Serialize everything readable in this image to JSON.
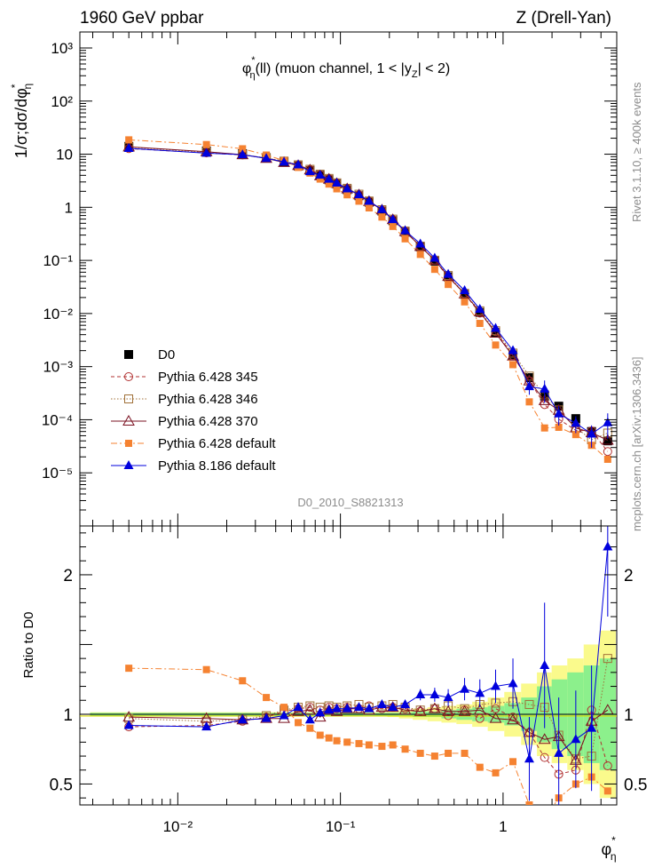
{
  "header": {
    "left": "1960 GeV ppbar",
    "right": "Z (Drell-Yan)"
  },
  "side_labels": {
    "rivet": "Rivet 3.1.10, ≥ 400k events",
    "source": "mcplots.cern.ch [arXiv:1306.3436]"
  },
  "chart_data": {
    "type": "scatter",
    "title": "φ*η(ll) (muon channel, 1 < |yZ| < 2)",
    "analysis_id": "D0_2010_S8821313",
    "xlabel": "φ*η",
    "ylabel": "1/σ;dσ/dφ*η",
    "ratio_ylabel": "Ratio to D0",
    "x_scale": "log",
    "y_scale": "log",
    "xlim": [
      0.0025,
      5
    ],
    "ylim": [
      1e-06,
      2000
    ],
    "ratio_ylim": [
      0.35,
      2.35
    ],
    "x_tick_labels": [
      "10⁻²",
      "10⁻¹",
      "1"
    ],
    "y_tick_labels": [
      "10⁻⁵",
      "10⁻⁴",
      "10⁻³",
      "10⁻²",
      "10⁻¹",
      "1",
      "10",
      "10²",
      "10³"
    ],
    "ratio_tick_labels": [
      "0.5",
      "1",
      "2"
    ],
    "legend_position": "bottom-left",
    "x": [
      0.005,
      0.015,
      0.025,
      0.035,
      0.045,
      0.055,
      0.065,
      0.075,
      0.085,
      0.095,
      0.11,
      0.13,
      0.15,
      0.18,
      0.21,
      0.25,
      0.31,
      0.38,
      0.46,
      0.58,
      0.72,
      0.9,
      1.15,
      1.45,
      1.8,
      2.2,
      2.8,
      3.5,
      4.4
    ],
    "series": [
      {
        "name": "D0",
        "color": "#000000",
        "marker": "square-filled",
        "line": "none",
        "values": [
          14,
          11.5,
          10.2,
          8.6,
          7.2,
          6.0,
          4.9,
          4.0,
          3.3,
          2.75,
          2.15,
          1.65,
          1.25,
          0.85,
          0.56,
          0.34,
          0.18,
          0.097,
          0.049,
          0.023,
          0.0105,
          0.0044,
          0.00165,
          0.00062,
          0.00028,
          0.00018,
          0.000105,
          6e-05,
          4e-05
        ],
        "errors": [
          0.4,
          0.3,
          0.25,
          0.2,
          0.2,
          0.15,
          0.12,
          0.1,
          0.08,
          0.07,
          0.05,
          0.04,
          0.03,
          0.02,
          0.015,
          0.01,
          0.005,
          0.003,
          0.0015,
          0.0008,
          0.0004,
          0.0002,
          8e-05,
          4e-05,
          2e-05,
          2e-05,
          1e-05,
          1e-05,
          1e-05
        ]
      },
      {
        "name": "Pythia 6.428 345",
        "color": "#b03030",
        "marker": "circle-open",
        "line": "dashed",
        "ratio": [
          0.91,
          0.92,
          0.95,
          0.98,
          1.02,
          1.04,
          1.05,
          1.03,
          1.05,
          1.04,
          1.05,
          1.04,
          1.06,
          1.04,
          1.05,
          1.04,
          1.02,
          1.04,
          0.99,
          1.03,
          0.97,
          1.04,
          0.98,
          0.87,
          0.69,
          0.57,
          0.6,
          1.03,
          0.63
        ]
      },
      {
        "name": "Pythia 6.428 346",
        "color": "#a07038",
        "marker": "square-open",
        "line": "dotted",
        "ratio": [
          0.97,
          0.95,
          0.96,
          0.99,
          1.03,
          1.05,
          1.06,
          1.05,
          1.06,
          1.05,
          1.06,
          1.07,
          1.05,
          1.06,
          1.07,
          1.05,
          1.03,
          1.04,
          1.06,
          1.04,
          1.07,
          1.08,
          1.09,
          1.07,
          1.05,
          0.85,
          0.68,
          0.7,
          1.4
        ]
      },
      {
        "name": "Pythia 6.428 370",
        "color": "#7a1020",
        "marker": "triangle-open",
        "line": "solid",
        "ratio": [
          0.98,
          0.97,
          0.96,
          0.97,
          0.97,
          1.02,
          1.03,
          0.98,
          1.03,
          1.02,
          1.04,
          1.04,
          1.03,
          1.05,
          1.05,
          1.03,
          1.02,
          1.04,
          1.02,
          1.02,
          1.03,
          0.97,
          0.96,
          0.87,
          0.82,
          0.84,
          0.67,
          0.95,
          1.03
        ]
      },
      {
        "name": "Pythia 6.428 default",
        "color": "#f58231",
        "marker": "square-filled-small",
        "line": "dashdot",
        "ratio": [
          1.33,
          1.32,
          1.24,
          1.12,
          1.05,
          0.94,
          0.9,
          0.85,
          0.83,
          0.81,
          0.8,
          0.79,
          0.78,
          0.77,
          0.78,
          0.75,
          0.72,
          0.7,
          0.72,
          0.72,
          0.62,
          0.58,
          0.66,
          0.35,
          0.25,
          0.4,
          0.5,
          0.55,
          0.45
        ]
      },
      {
        "name": "Pythia 8.186 default",
        "color": "#0000dd",
        "marker": "triangle-filled",
        "line": "solid",
        "ratio": [
          0.92,
          0.91,
          0.96,
          0.97,
          0.99,
          1.05,
          0.96,
          1.01,
          1.03,
          1.04,
          1.04,
          1.05,
          1.04,
          1.07,
          1.05,
          1.07,
          1.14,
          1.14,
          1.12,
          1.18,
          1.15,
          1.2,
          1.22,
          0.68,
          1.35,
          0.72,
          0.82,
          0.9,
          2.2
        ],
        "ratio_errors": [
          0.02,
          0.02,
          0.02,
          0.02,
          0.02,
          0.02,
          0.02,
          0.02,
          0.02,
          0.02,
          0.02,
          0.02,
          0.02,
          0.02,
          0.02,
          0.03,
          0.04,
          0.05,
          0.06,
          0.08,
          0.1,
          0.12,
          0.18,
          0.3,
          0.45,
          0.4,
          0.35,
          0.45,
          0.5
        ]
      }
    ],
    "ratio_band": {
      "stat_color": "#8cf08c",
      "syst_color": "#fafa8c",
      "stat_halfwidth": [
        0.01,
        0.01,
        0.01,
        0.01,
        0.01,
        0.01,
        0.01,
        0.01,
        0.01,
        0.01,
        0.01,
        0.01,
        0.01,
        0.01,
        0.01,
        0.015,
        0.02,
        0.02,
        0.03,
        0.04,
        0.05,
        0.06,
        0.08,
        0.12,
        0.2,
        0.25,
        0.3,
        0.35,
        0.4
      ],
      "syst_halfwidth": [
        0.015,
        0.015,
        0.015,
        0.015,
        0.015,
        0.015,
        0.015,
        0.015,
        0.015,
        0.015,
        0.015,
        0.015,
        0.015,
        0.015,
        0.02,
        0.03,
        0.04,
        0.05,
        0.06,
        0.07,
        0.09,
        0.12,
        0.16,
        0.22,
        0.3,
        0.35,
        0.4,
        0.5,
        0.6
      ]
    }
  }
}
